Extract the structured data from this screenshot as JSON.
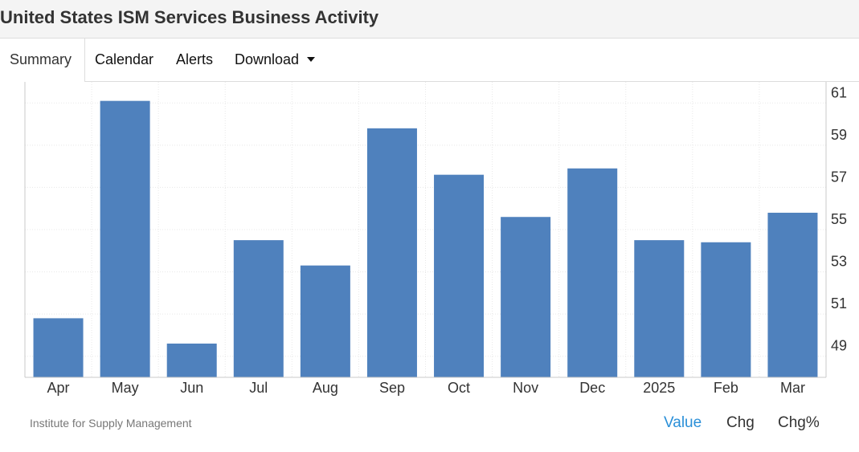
{
  "page": {
    "title": "United States ISM Services Business Activity"
  },
  "tabs": [
    {
      "label": "Summary",
      "active": true
    },
    {
      "label": "Calendar",
      "active": false
    },
    {
      "label": "Alerts",
      "active": false
    },
    {
      "label": "Download",
      "active": false,
      "icon": "caret-down-icon"
    }
  ],
  "footer": {
    "source": "Institute for Supply Management",
    "modes": [
      {
        "label": "Value",
        "active": true
      },
      {
        "label": "Chg",
        "active": false
      },
      {
        "label": "Chg%",
        "active": false
      }
    ]
  },
  "colors": {
    "bar": "#4f81bd",
    "grid": "#e8e8e8",
    "axis": "#c8c8c8",
    "active_mode": "#2a8fd8"
  },
  "chart_data": {
    "type": "bar",
    "title": "",
    "xlabel": "",
    "ylabel": "",
    "y_axis_side": "right",
    "categories": [
      "Apr",
      "May",
      "Jun",
      "Jul",
      "Aug",
      "Sep",
      "Oct",
      "Nov",
      "Dec",
      "2025",
      "Feb",
      "Mar"
    ],
    "values": [
      50.8,
      61.1,
      49.6,
      54.5,
      53.3,
      59.8,
      57.6,
      55.6,
      57.9,
      54.5,
      54.4,
      55.8
    ],
    "yticks": [
      49,
      51,
      53,
      55,
      57,
      59,
      61
    ],
    "ylim": [
      48,
      62
    ],
    "grid": true
  }
}
